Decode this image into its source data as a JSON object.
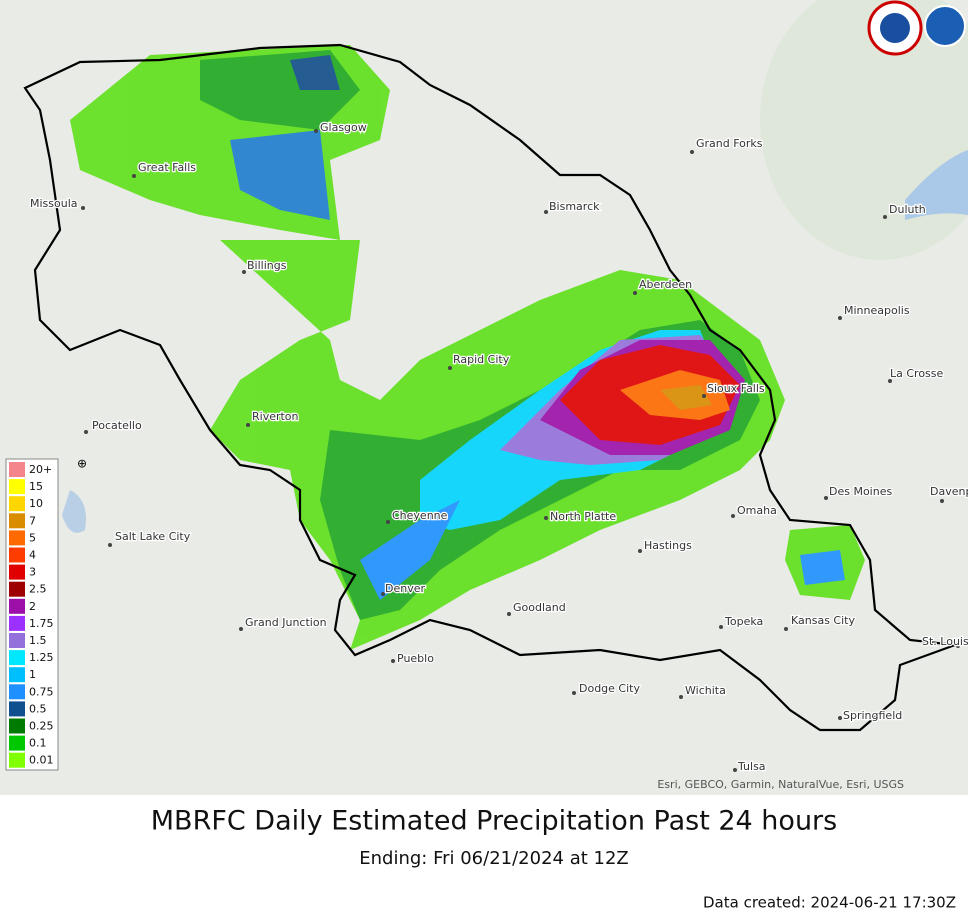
{
  "title": "MBRFC Daily Estimated Precipitation Past 24 hours",
  "subtitle": "Ending: Fri 06/21/2024 at 12Z",
  "data_created": "Data created: 2024-06-21 17:30Z",
  "attribution": "Esri, GEBCO, Garmin, NaturalVue, Esri, USGS",
  "cities": [
    "Glasgow",
    "Great Falls",
    "Missoula",
    "Bismarck",
    "Grand Forks",
    "Duluth",
    "Billings",
    "Aberdeen",
    "Minneapolis",
    "Rapid City",
    "Sioux Falls",
    "La Crosse",
    "Pocatello",
    "Riverton",
    "Des Moines",
    "Davenport",
    "Omaha",
    "Salt Lake City",
    "Cheyenne",
    "North Platte",
    "Hastings",
    "Denver",
    "Goodland",
    "Grand Junction",
    "Topeka",
    "Kansas City",
    "St. Louis",
    "Pueblo",
    "Dodge City",
    "Wichita",
    "Springfield",
    "Tulsa"
  ],
  "legend": [
    {
      "label": "20+",
      "color": "#f4858a"
    },
    {
      "label": "15",
      "color": "#ffff00"
    },
    {
      "label": "10",
      "color": "#ffd700"
    },
    {
      "label": "7",
      "color": "#d98c00"
    },
    {
      "label": "5",
      "color": "#ff6a00"
    },
    {
      "label": "4",
      "color": "#ff3c00"
    },
    {
      "label": "3",
      "color": "#e00000"
    },
    {
      "label": "2.5",
      "color": "#9e0000"
    },
    {
      "label": "2",
      "color": "#9c0fa8"
    },
    {
      "label": "1.75",
      "color": "#9b30ff"
    },
    {
      "label": "1.5",
      "color": "#9370db"
    },
    {
      "label": "1.25",
      "color": "#00e8ff"
    },
    {
      "label": "1",
      "color": "#00bfff"
    },
    {
      "label": "0.75",
      "color": "#1e90ff"
    },
    {
      "label": "0.5",
      "color": "#10508e"
    },
    {
      "label": "0.25",
      "color": "#007a00"
    },
    {
      "label": "0.1",
      "color": "#00c800"
    },
    {
      "label": "0.01",
      "color": "#80ff00"
    }
  ]
}
